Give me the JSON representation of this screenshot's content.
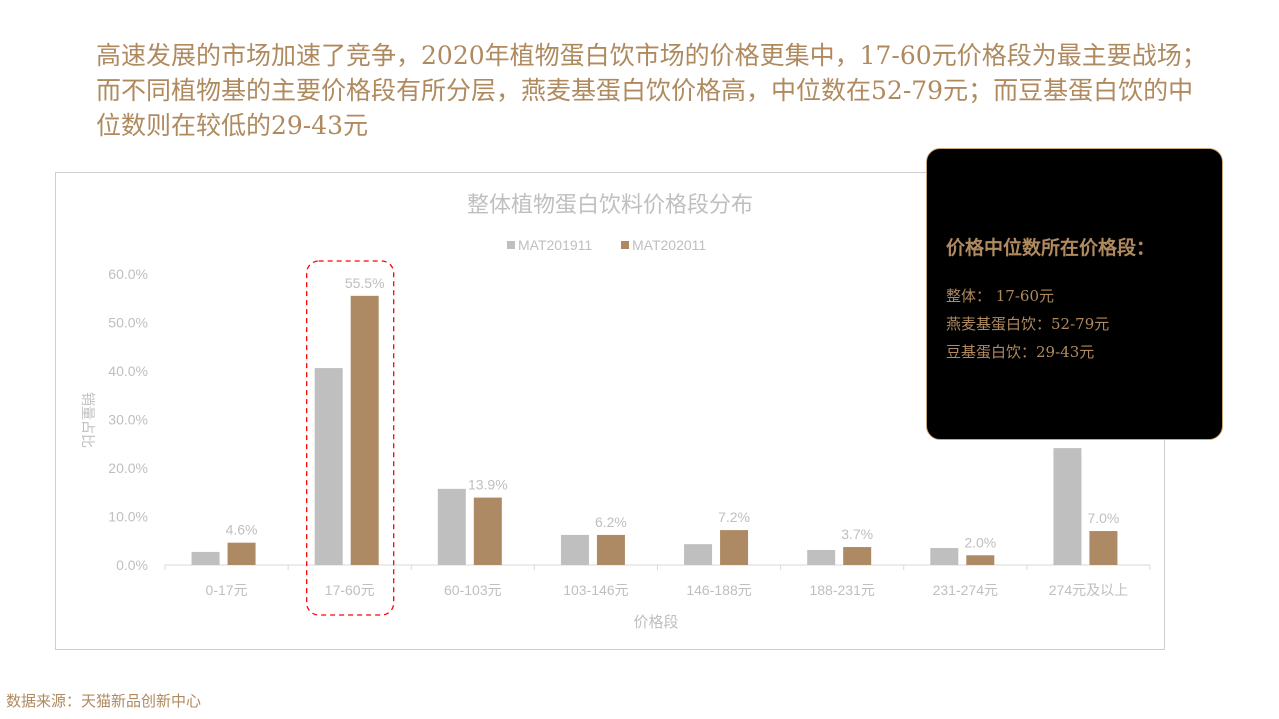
{
  "headline": "高速发展的市场加速了竞争，2020年植物蛋白饮市场的价格更集中，17-60元价格段为最主要战场；而不同植物基的主要价格段有所分层，燕麦基蛋白饮价格高，中位数在52-79元；而豆基蛋白饮的中位数则在较低的29-43元",
  "callout": {
    "title": "价格中位数所在价格段：",
    "lines": [
      "整体： 17-60元",
      "燕麦基蛋白饮：52-79元",
      "豆基蛋白饮：29-43元"
    ]
  },
  "source": "数据来源：天猫新品创新中心",
  "colors": {
    "gray": "#bfbfbf",
    "brown": "#ad8a64",
    "highlight": "#ff0000",
    "text": "#b08a5f"
  },
  "chart_data": {
    "type": "bar",
    "title": "整体植物蛋白饮料价格段分布",
    "xlabel": "价格段",
    "ylabel": "销量占比",
    "ylim": [
      0,
      60
    ],
    "yticks": [
      "0.0%",
      "10.0%",
      "20.0%",
      "30.0%",
      "40.0%",
      "50.0%",
      "60.0%"
    ],
    "categories": [
      "0-17元",
      "17-60元",
      "60-103元",
      "103-146元",
      "146-188元",
      "188-231元",
      "231-274元",
      "274元及以上"
    ],
    "legend_position": "top",
    "grid": false,
    "highlighted_category": "17-60元",
    "series": [
      {
        "name": "MAT201911",
        "color": "#bfbfbf",
        "values": [
          2.7,
          40.6,
          15.7,
          6.2,
          4.3,
          3.1,
          3.5,
          24.1
        ],
        "labels": []
      },
      {
        "name": "MAT202011",
        "color": "#ad8a64",
        "values": [
          4.6,
          55.5,
          13.9,
          6.2,
          7.2,
          3.7,
          2.0,
          7.0
        ],
        "labels": [
          "4.6%",
          "55.5%",
          "13.9%",
          "6.2%",
          "7.2%",
          "3.7%",
          "2.0%",
          "7.0%"
        ]
      }
    ]
  }
}
